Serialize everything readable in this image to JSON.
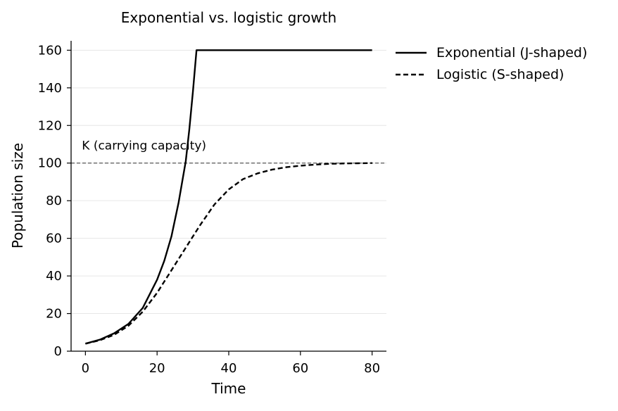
{
  "chart_data": {
    "type": "line",
    "title": "Exponential vs. logistic growth",
    "xlabel": "Time",
    "ylabel": "Population size",
    "xlim": [
      -4,
      84
    ],
    "ylim": [
      0,
      165
    ],
    "xticks": [
      0,
      20,
      40,
      60,
      80
    ],
    "yticks": [
      0,
      20,
      40,
      60,
      80,
      100,
      120,
      140,
      160
    ],
    "grid": "horizontal",
    "legend": "outside-top-right",
    "reference_line": {
      "y": 100,
      "label": "K (carrying capacity)",
      "style": "dashed",
      "color": "#666666"
    },
    "series": [
      {
        "name": "Exponential (J-shaped)",
        "style": "solid",
        "color": "#000000",
        "x": [
          0,
          4,
          8,
          12,
          16,
          20,
          22,
          24,
          26,
          28,
          29,
          30,
          31,
          35,
          40,
          50,
          60,
          70,
          80
        ],
        "y": [
          4,
          6.1,
          9.5,
          14.5,
          23,
          38,
          48,
          61,
          79,
          101,
          118,
          138,
          160,
          160,
          160,
          160,
          160,
          160,
          160
        ]
      },
      {
        "name": "Logistic (S-shaped)",
        "style": "dashed",
        "color": "#000000",
        "x": [
          0,
          4,
          8,
          12,
          16,
          20,
          24,
          28,
          32,
          36,
          40,
          44,
          48,
          52,
          56,
          60,
          64,
          68,
          72,
          76,
          80
        ],
        "y": [
          4,
          5.8,
          8.7,
          13.5,
          21,
          31,
          43,
          55,
          67,
          78,
          86,
          91.5,
          94.5,
          96.5,
          97.8,
          98.6,
          99.2,
          99.6,
          99.8,
          99.9,
          100
        ]
      }
    ]
  }
}
